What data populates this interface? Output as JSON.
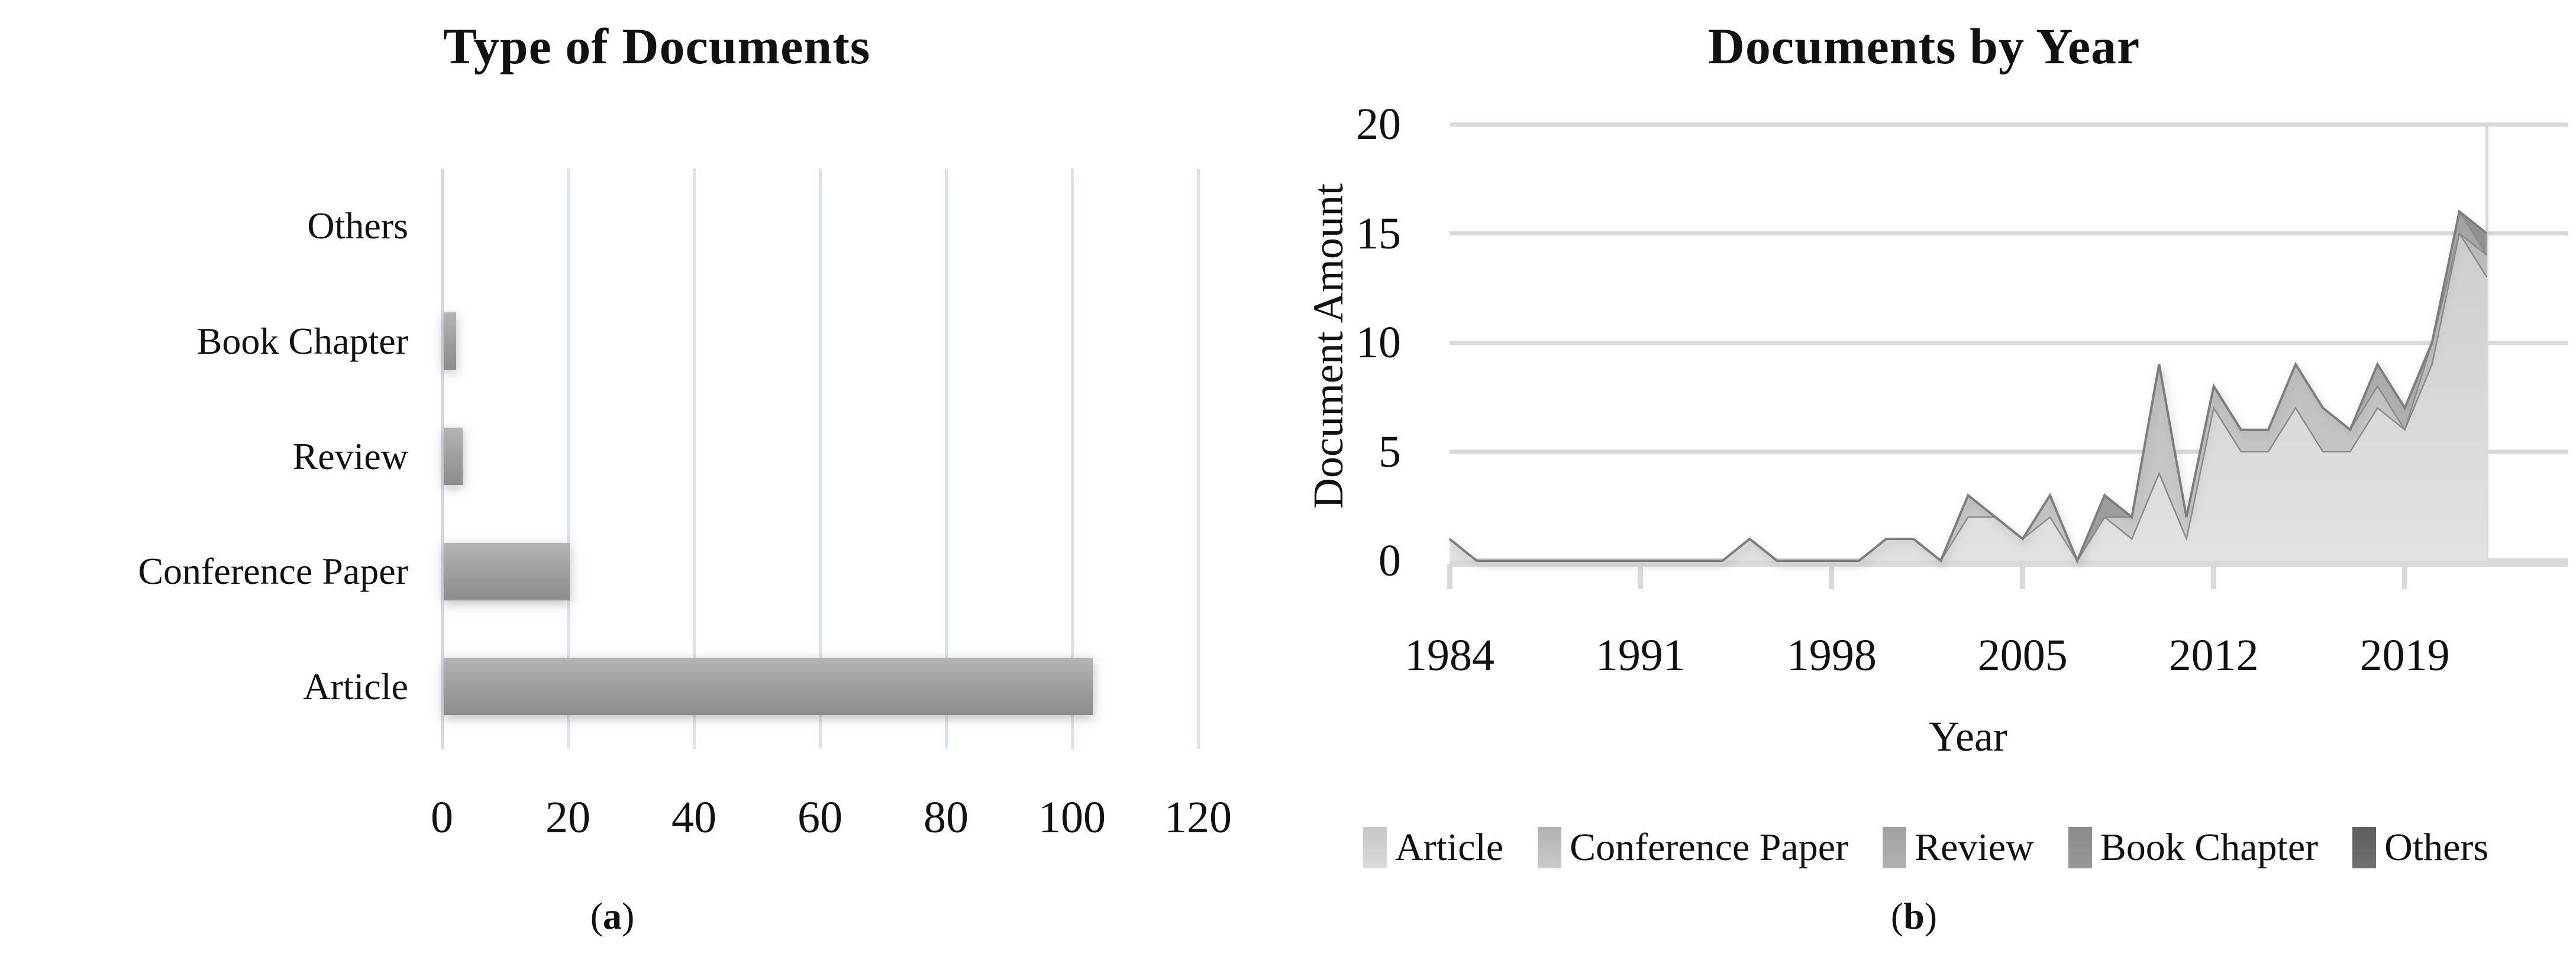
{
  "figure": {
    "captions": {
      "a": {
        "open": "(",
        "letter": "a",
        "close": ")"
      },
      "b": {
        "open": "(",
        "letter": "b",
        "close": ")"
      }
    }
  },
  "chart_data": [
    {
      "type": "bar",
      "orientation": "horizontal",
      "title": "Type of Documents",
      "categories": [
        "Others",
        "Book Chapter",
        "Review",
        "Conference Paper",
        "Article"
      ],
      "values": [
        0,
        2,
        3,
        20,
        103
      ],
      "xlim": [
        0,
        120
      ],
      "x_ticks": [
        0,
        20,
        40,
        60,
        80,
        100,
        120
      ],
      "grid": "vertical",
      "bar_color": "#9d9d9d",
      "gridline_color": "#dde3ec"
    },
    {
      "type": "area",
      "stacked": true,
      "title": "Documents by Year",
      "xlabel": "Year",
      "ylabel": "Document Amount",
      "ylim": [
        0,
        20
      ],
      "y_ticks": [
        0,
        5,
        10,
        15,
        20
      ],
      "x_tick_labels": [
        1984,
        1991,
        1998,
        2005,
        2012,
        2019
      ],
      "x": [
        1984,
        1985,
        1986,
        1987,
        1988,
        1989,
        1990,
        1991,
        1992,
        1993,
        1994,
        1995,
        1996,
        1997,
        1998,
        1999,
        2000,
        2001,
        2002,
        2003,
        2004,
        2005,
        2006,
        2007,
        2008,
        2009,
        2010,
        2011,
        2012,
        2013,
        2014,
        2015,
        2016,
        2017,
        2018,
        2019,
        2020,
        2021,
        2022
      ],
      "series": [
        {
          "name": "Article",
          "color": "#d9d9d9",
          "fill_top": "#c7c7c7",
          "fill_bottom": "#e2e2e2",
          "values": [
            1,
            0,
            0,
            0,
            0,
            0,
            0,
            0,
            0,
            0,
            0,
            1,
            0,
            0,
            0,
            0,
            1,
            1,
            0,
            2,
            2,
            1,
            2,
            0,
            2,
            1,
            4,
            1,
            7,
            5,
            5,
            7,
            5,
            5,
            7,
            6,
            9,
            15,
            13
          ]
        },
        {
          "name": "Conference Paper",
          "color": "#c9c9c9",
          "fill_top": "#b2b2b2",
          "fill_bottom": "#cbcbcb",
          "values": [
            0,
            0,
            0,
            0,
            0,
            0,
            0,
            0,
            0,
            0,
            0,
            0,
            0,
            0,
            0,
            0,
            0,
            0,
            0,
            1,
            0,
            0,
            1,
            0,
            0,
            1,
            5,
            1,
            1,
            1,
            1,
            2,
            2,
            1,
            1,
            0,
            1,
            0,
            1
          ]
        },
        {
          "name": "Review",
          "color": "#b1b1b1",
          "fill_top": "#a0a0a0",
          "fill_bottom": "#b8b8b8",
          "values": [
            0,
            0,
            0,
            0,
            0,
            0,
            0,
            0,
            0,
            0,
            0,
            0,
            0,
            0,
            0,
            0,
            0,
            0,
            0,
            0,
            0,
            0,
            0,
            0,
            0,
            0,
            0,
            0,
            0,
            0,
            0,
            0,
            0,
            0,
            1,
            1,
            0,
            1,
            0
          ]
        },
        {
          "name": "Book Chapter",
          "color": "#989898",
          "fill_top": "#8a8a8a",
          "fill_bottom": "#a0a0a0",
          "values": [
            0,
            0,
            0,
            0,
            0,
            0,
            0,
            0,
            0,
            0,
            0,
            0,
            0,
            0,
            0,
            0,
            0,
            0,
            0,
            0,
            0,
            0,
            0,
            0,
            1,
            0,
            0,
            0,
            0,
            0,
            0,
            0,
            0,
            0,
            0,
            0,
            0,
            0,
            1
          ]
        },
        {
          "name": "Others",
          "color": "#6f6f6f",
          "fill_top": "#5e5e5e",
          "fill_bottom": "#787878",
          "values": [
            0,
            0,
            0,
            0,
            0,
            0,
            0,
            0,
            0,
            0,
            0,
            0,
            0,
            0,
            0,
            0,
            0,
            0,
            0,
            0,
            0,
            0,
            0,
            0,
            0,
            0,
            0,
            0,
            0,
            0,
            0,
            0,
            0,
            0,
            0,
            0,
            0,
            0,
            0
          ]
        }
      ],
      "legend_position": "bottom",
      "grid": "horizontal",
      "gridline_color": "#d9d9d9",
      "outline_color": "#7d7d7d"
    }
  ]
}
